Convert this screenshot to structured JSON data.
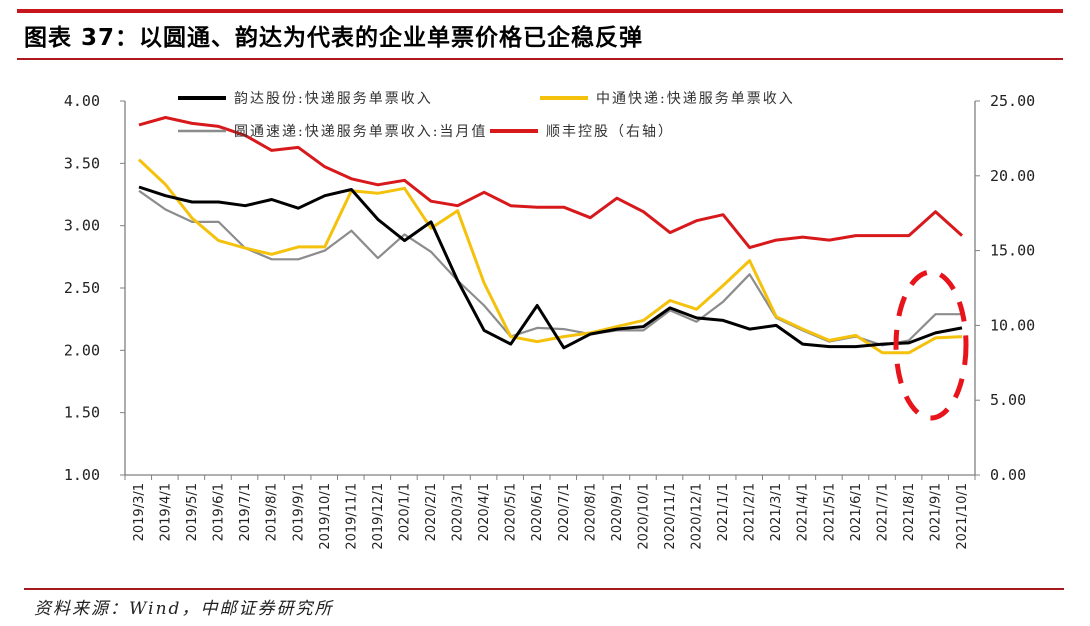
{
  "header": {
    "title": "图表 37：以圆通、韵达为代表的企业单票价格已企稳反弹"
  },
  "footer": {
    "source": "资料来源：Wind，中邮证券研究所"
  },
  "colors": {
    "rule": "#c8161d",
    "yunda": "#000000",
    "zto": "#f4c20d",
    "yto": "#8c8c8c",
    "sf": "#d7191c",
    "annotation": "#e8141b",
    "axis": "#808080"
  },
  "chart_data": {
    "type": "line",
    "title": "以圆通、韵达为代表的企业单票价格已企稳反弹",
    "xlabel": "",
    "ylabel": "",
    "ylim": [
      1.0,
      4.0
    ],
    "y2lim": [
      0.0,
      25.0
    ],
    "yticks": [
      "4.00",
      "3.50",
      "3.00",
      "2.50",
      "2.00",
      "1.50",
      "1.00"
    ],
    "y2ticks": [
      "25.00",
      "20.00",
      "15.00",
      "10.00",
      "5.00",
      "0.00"
    ],
    "grid": false,
    "legend_position": "top",
    "categories": [
      "2019/3/1",
      "2019/4/1",
      "2019/5/1",
      "2019/6/1",
      "2019/7/1",
      "2019/8/1",
      "2019/9/1",
      "2019/10/1",
      "2019/11/1",
      "2019/12/1",
      "2020/1/1",
      "2020/2/1",
      "2020/3/1",
      "2020/4/1",
      "2020/5/1",
      "2020/6/1",
      "2020/7/1",
      "2020/8/1",
      "2020/9/1",
      "2020/10/1",
      "2020/11/1",
      "2020/12/1",
      "2021/1/1",
      "2021/2/1",
      "2021/3/1",
      "2021/4/1",
      "2021/5/1",
      "2021/6/1",
      "2021/7/1",
      "2021/8/1",
      "2021/9/1",
      "2021/10/1"
    ],
    "series": [
      {
        "name": "韵达股份:快递服务单票收入",
        "axis": "left",
        "color": "#000000",
        "values": [
          3.31,
          3.24,
          3.19,
          3.19,
          3.16,
          3.21,
          3.14,
          3.24,
          3.29,
          3.05,
          2.88,
          3.03,
          2.56,
          2.16,
          2.05,
          2.36,
          2.02,
          2.13,
          2.17,
          2.19,
          2.34,
          2.26,
          2.24,
          2.17,
          2.2,
          2.05,
          2.03,
          2.03,
          2.05,
          2.06,
          2.14,
          2.18
        ]
      },
      {
        "name": "中通快递:快递服务单票收入",
        "axis": "left",
        "color": "#f4c20d",
        "values": [
          3.53,
          3.33,
          3.06,
          2.88,
          2.82,
          2.77,
          2.83,
          2.83,
          3.28,
          3.26,
          3.3,
          2.98,
          3.12,
          2.54,
          2.11,
          2.07,
          2.11,
          2.14,
          2.19,
          2.24,
          2.4,
          2.33,
          2.52,
          2.72,
          2.27,
          2.17,
          2.08,
          2.12,
          1.98,
          1.98,
          2.1,
          2.11
        ]
      },
      {
        "name": "圆通速递:快递服务单票收入:当月值",
        "axis": "left",
        "color": "#8c8c8c",
        "values": [
          3.28,
          3.13,
          3.03,
          3.03,
          2.82,
          2.73,
          2.73,
          2.8,
          2.96,
          2.74,
          2.93,
          2.79,
          2.56,
          2.36,
          2.11,
          2.18,
          2.17,
          2.13,
          2.16,
          2.16,
          2.32,
          2.23,
          2.39,
          2.61,
          2.26,
          2.16,
          2.07,
          2.11,
          2.04,
          2.08,
          2.29,
          2.29
        ]
      },
      {
        "name": "顺丰控股（右轴）",
        "axis": "right",
        "color": "#d7191c",
        "values": [
          23.4,
          23.9,
          23.5,
          23.3,
          22.7,
          21.7,
          21.9,
          20.6,
          19.8,
          19.4,
          19.7,
          18.3,
          18.0,
          18.9,
          18.0,
          17.9,
          17.9,
          17.2,
          18.5,
          17.6,
          16.2,
          17.0,
          17.4,
          15.2,
          15.7,
          15.9,
          15.7,
          16.0,
          16.0,
          16.0,
          17.6,
          16.0
        ]
      }
    ],
    "annotations": [
      {
        "type": "dashed-ellipse",
        "target_categories": [
          "2021/8/1",
          "2021/9/1",
          "2021/10/1"
        ],
        "color": "#e8141b"
      }
    ]
  }
}
